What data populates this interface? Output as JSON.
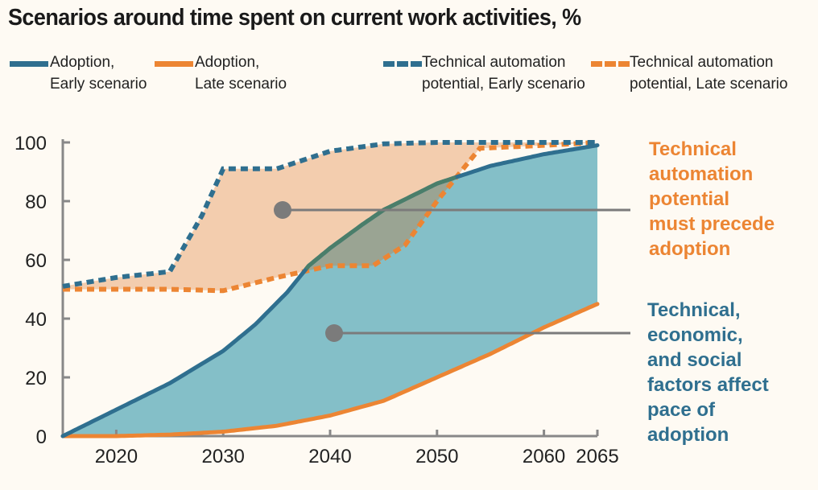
{
  "title": "Scenarios around time spent on current work activities, %",
  "colors": {
    "adoption_early": "#2f6f8f",
    "adoption_late": "#ec8533",
    "adoption_fill": "#84bfc8",
    "potential_fill": "#f3cdae",
    "overlap_fill": "#9aa493",
    "overlap_line": "#4a7e6a",
    "marker": "#7b7b7b",
    "axis": "#888888",
    "annotation_orange": "#ec8533",
    "annotation_teal": "#2f6f8f"
  },
  "legend": [
    {
      "key": "adoption_early",
      "label": "Adoption,\nEarly scenario",
      "style": "solid",
      "color": "#2f6f8f"
    },
    {
      "key": "adoption_late",
      "label": "Adoption,\nLate scenario",
      "style": "solid",
      "color": "#ec8533"
    },
    {
      "key": "potential_early",
      "label": "Technical automation\npotential, Early scenario",
      "style": "dotted",
      "color": "#2f6f8f"
    },
    {
      "key": "potential_late",
      "label": "Technical automation\npotential, Late scenario",
      "style": "dotted",
      "color": "#ec8533"
    }
  ],
  "annotations": {
    "potential": "Technical\nautomation\npotential\nmust precede\nadoption",
    "adoption": "Technical,\neconomic,\nand social\nfactors affect\npace of\nadoption"
  },
  "chart_data": {
    "type": "line",
    "title": "Scenarios around time spent on current work activities, %",
    "xlabel": "",
    "ylabel": "",
    "xlim": [
      2015,
      2065
    ],
    "ylim": [
      0,
      100
    ],
    "x_ticks": [
      2020,
      2030,
      2040,
      2050,
      2060,
      2065
    ],
    "y_ticks": [
      0,
      20,
      40,
      60,
      80,
      100
    ],
    "grid": false,
    "legend_position": "top",
    "series": [
      {
        "name": "Adoption, Early scenario",
        "style": "solid",
        "x": [
          2015,
          2020,
          2025,
          2030,
          2033,
          2036,
          2038,
          2040,
          2043,
          2045,
          2050,
          2055,
          2060,
          2065
        ],
        "y": [
          0,
          9,
          18,
          29,
          38,
          49,
          58,
          64,
          72,
          77,
          86,
          92,
          96,
          99
        ]
      },
      {
        "name": "Adoption, Late scenario",
        "style": "solid",
        "x": [
          2015,
          2020,
          2025,
          2030,
          2035,
          2040,
          2045,
          2050,
          2055,
          2060,
          2065
        ],
        "y": [
          0,
          0,
          0.5,
          1.5,
          3.5,
          7,
          12,
          20,
          28,
          37,
          45
        ]
      },
      {
        "name": "Technical automation potential, Early scenario",
        "style": "dotted",
        "x": [
          2015,
          2020,
          2025,
          2028,
          2030,
          2035,
          2040,
          2045,
          2050,
          2055,
          2060,
          2065
        ],
        "y": [
          51,
          54,
          56,
          75,
          91,
          91,
          97,
          99.5,
          100,
          100,
          100,
          100
        ]
      },
      {
        "name": "Technical automation potential, Late scenario",
        "style": "dotted",
        "x": [
          2015,
          2020,
          2025,
          2030,
          2035,
          2040,
          2044,
          2047,
          2050,
          2054,
          2060,
          2065
        ],
        "y": [
          50,
          50,
          50,
          49.5,
          54,
          58,
          58,
          65,
          80,
          98,
          99,
          100
        ]
      }
    ]
  }
}
